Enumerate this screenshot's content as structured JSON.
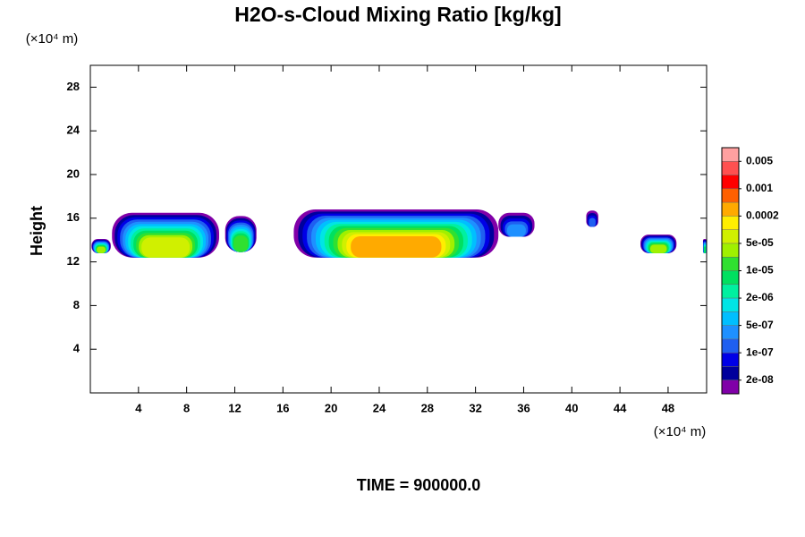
{
  "chart_data": {
    "type": "contour",
    "title": "H2O-s-Cloud Mixing Ratio [kg/kg]",
    "y_label": "Height",
    "y_unit": "(×10⁴ m)",
    "x_unit": "(×10⁴ m)",
    "footer": "TIME = 900000.0",
    "xlim": [
      0,
      51.2
    ],
    "ylim": [
      0,
      30
    ],
    "xticks": [
      4,
      8,
      12,
      16,
      20,
      24,
      28,
      32,
      36,
      40,
      44,
      48
    ],
    "yticks": [
      4,
      8,
      12,
      16,
      20,
      24,
      28
    ],
    "colorbar": {
      "colors": [
        "#8000a8",
        "#00009c",
        "#0000e6",
        "#1f5ff0",
        "#1e90ff",
        "#00bfff",
        "#00e5e5",
        "#00f0a0",
        "#00e060",
        "#30e030",
        "#a0f000",
        "#d0f000",
        "#ffee00",
        "#ffaa00",
        "#ff6000",
        "#ff0000",
        "#ff5050",
        "#ffa0a0"
      ],
      "levels": [
        2e-08,
        5e-08,
        1e-07,
        2e-07,
        5e-07,
        1e-06,
        2e-06,
        5e-06,
        1e-05,
        2e-05,
        5e-05,
        0.0001,
        0.0002,
        0.0005,
        0.001,
        0.002,
        0.005
      ],
      "ticks": [
        {
          "value": 2e-08,
          "label": "2e-08"
        },
        {
          "value": 1e-07,
          "label": "1e-07"
        },
        {
          "value": 5e-07,
          "label": "5e-07"
        },
        {
          "value": 2e-06,
          "label": "2e-06"
        },
        {
          "value": 1e-05,
          "label": "1e-05"
        },
        {
          "value": 5e-05,
          "label": "5e-05"
        },
        0.0002,
        0.001,
        0.005
      ]
    },
    "clouds": [
      {
        "x": [
          0.1,
          1.7
        ],
        "y": [
          12.8,
          14.1
        ],
        "max": 2e-05
      },
      {
        "x": [
          1.9,
          4.2
        ],
        "y": [
          13.4,
          14.4
        ],
        "max": 1e-05
      },
      {
        "x": [
          1.8,
          10.7
        ],
        "y": [
          12.4,
          16.5
        ],
        "max": 5e-05
      },
      {
        "x": [
          11.2,
          13.8
        ],
        "y": [
          12.9,
          16.2
        ],
        "max": 1e-05
      },
      {
        "x": [
          16.9,
          33.9
        ],
        "y": [
          12.4,
          16.8
        ],
        "max": 0.0002
      },
      {
        "x": [
          33.9,
          36.9
        ],
        "y": [
          14.3,
          16.5
        ],
        "max": 2e-07
      },
      {
        "x": [
          41.2,
          42.2
        ],
        "y": [
          15.2,
          16.7
        ],
        "max": 1e-07
      },
      {
        "x": [
          45.7,
          48.7
        ],
        "y": [
          12.8,
          14.5
        ],
        "max": 2e-05
      },
      {
        "x": [
          50.9,
          51.2
        ],
        "y": [
          12.8,
          14.1
        ],
        "max": 5e-06
      }
    ]
  }
}
